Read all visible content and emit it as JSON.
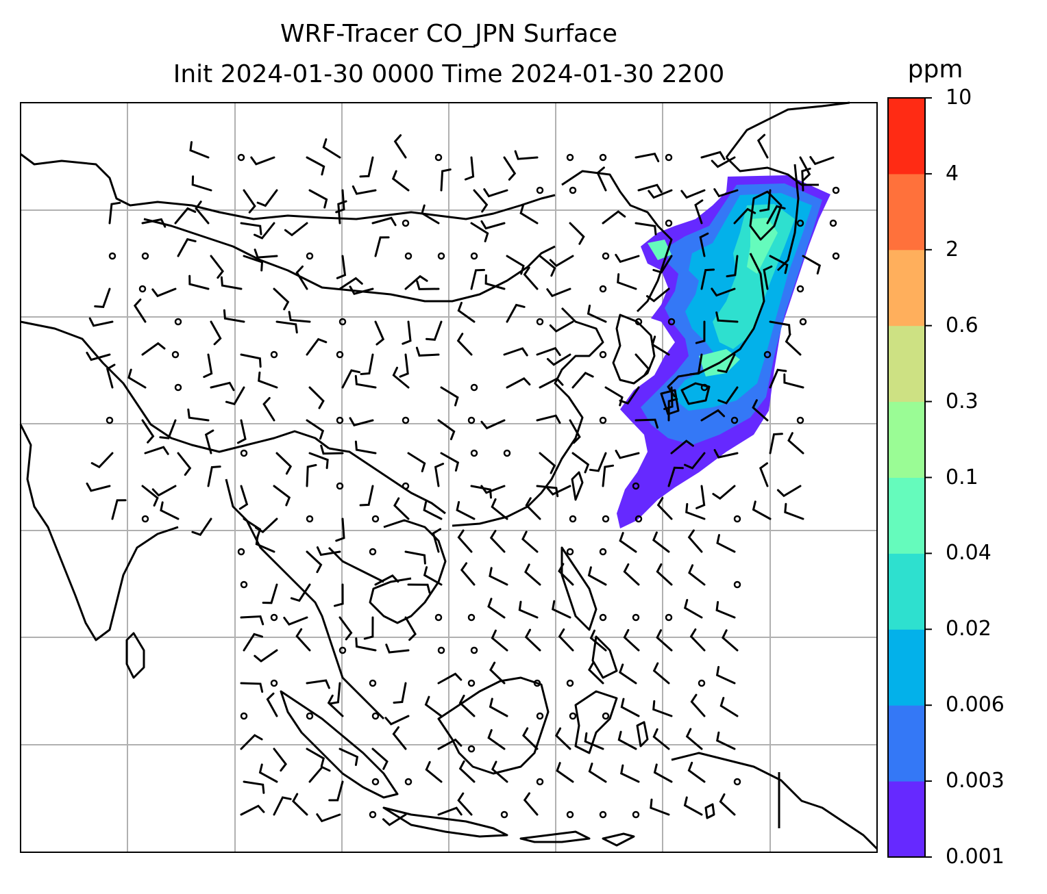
{
  "title": {
    "line1": "WRF-Tracer CO_JPN Surface",
    "line2": "Init 2024-01-30 0000 Time 2024-01-30 2200"
  },
  "colorbar": {
    "unit": "ppm",
    "levels": [
      "0.001",
      "0.003",
      "0.006",
      "0.02",
      "0.04",
      "0.1",
      "0.3",
      "0.6",
      "2",
      "4",
      "10"
    ],
    "colors": [
      "#6629ff",
      "#3478f6",
      "#03b1ea",
      "#2ee0cf",
      "#65fbbc",
      "#9afc95",
      "#cde183",
      "#ffaf5c",
      "#ff713b",
      "#ff2b14"
    ]
  },
  "map": {
    "gridlines": true,
    "plume_region": "Japan and surrounding seas",
    "plume_colors": {
      "low": "#6629ff",
      "mid_low": "#3478f6",
      "mid": "#03b1ea",
      "mid_high": "#2ee0cf",
      "high": "#65fbbc"
    },
    "coastline_color": "#000000",
    "gridline_color": "#b0b0b0"
  }
}
